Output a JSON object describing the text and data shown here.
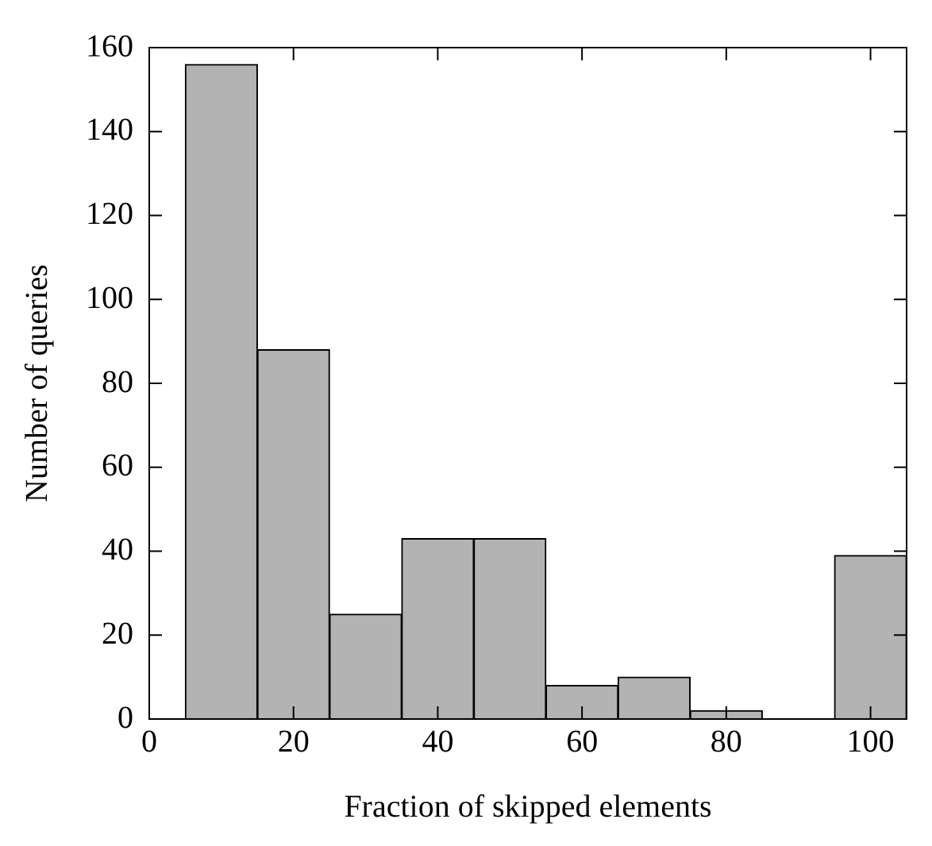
{
  "chart_data": {
    "type": "histogram",
    "xlabel": "Fraction of skipped elements",
    "ylabel": "Number of queries",
    "bins": [
      5,
      15,
      25,
      35,
      45,
      55,
      65,
      75,
      85,
      95,
      105
    ],
    "values": [
      156,
      88,
      25,
      43,
      43,
      8,
      10,
      2,
      0,
      39
    ],
    "color": "#b3b3b3",
    "xlim": [
      0,
      105
    ],
    "xticks": [
      0,
      20,
      40,
      60,
      80,
      100
    ],
    "ylim": [
      0,
      160
    ],
    "yticks": [
      0,
      20,
      40,
      60,
      80,
      100,
      120,
      140,
      160
    ],
    "grid": false,
    "legend": false
  }
}
